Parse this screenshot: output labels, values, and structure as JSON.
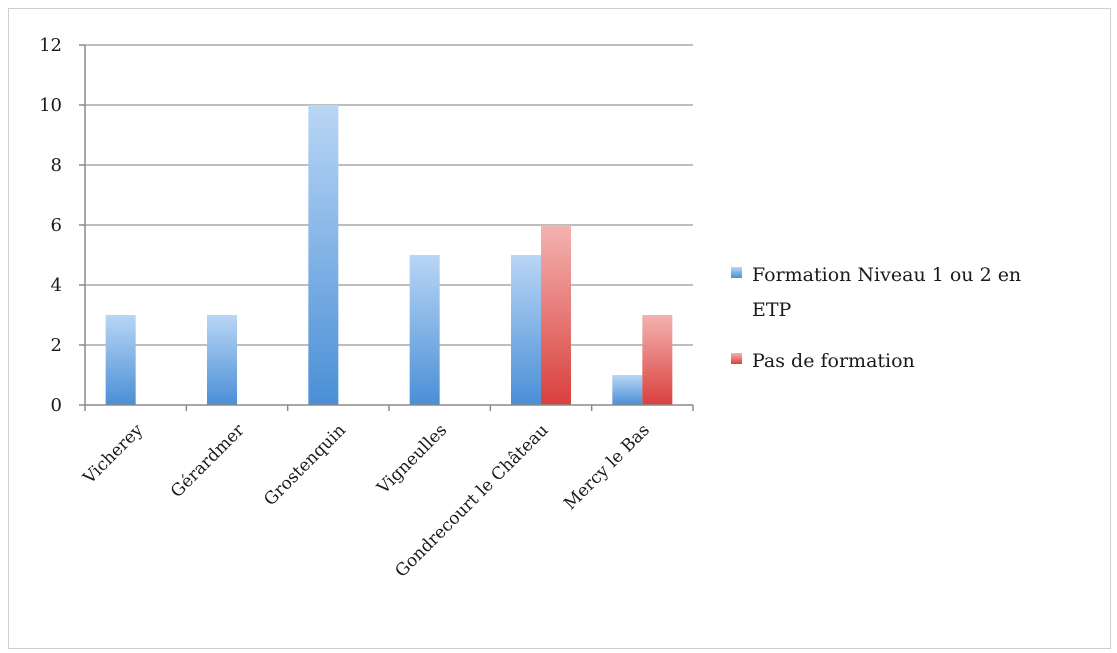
{
  "chart_data": {
    "type": "bar",
    "categories": [
      "Vicherey",
      "Gérardmer",
      "Grostenquin",
      "Vigneulles",
      "Gondrecourt le Château",
      "Mercy le Bas"
    ],
    "series": [
      {
        "name": "Formation Niveau 1 ou 2 en ETP",
        "values": [
          3,
          3,
          10,
          5,
          5,
          1
        ],
        "color": "#5b9bd5"
      },
      {
        "name": "Pas de formation",
        "values": [
          0,
          0,
          0,
          0,
          6,
          3
        ],
        "color": "#e0605e"
      }
    ],
    "ylim": [
      0,
      12
    ],
    "yticks": [
      0,
      2,
      4,
      6,
      8,
      10,
      12
    ],
    "grid": true,
    "legend": "right",
    "title": "",
    "xlabel": "",
    "ylabel": ""
  },
  "legend": {
    "series1_line1": "Formation Niveau 1 ou 2 en",
    "series1_line2": "ETP",
    "series2": "Pas de formation"
  }
}
